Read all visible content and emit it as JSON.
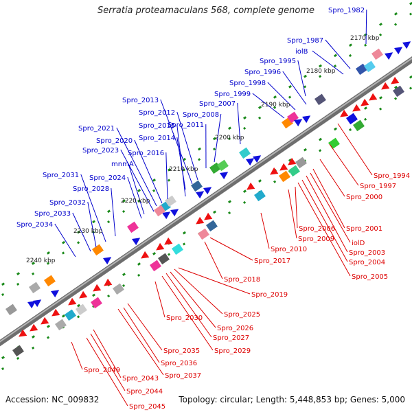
{
  "title": "Serratia proteamaculans 568, complete genome",
  "footer": {
    "accession": "Accession: NC_009832",
    "topology": "Topology: circular; Length: 5,448,853 bp; Genes: 5,000"
  },
  "colors": {
    "backbone": "#808080",
    "tick": "#1a8a1a",
    "plus_label": "#0000cc",
    "minus_label": "#dd0000",
    "plus_arrow": "#1010dd",
    "minus_arrow": "#ee1111"
  },
  "kbp_markers": [
    "2170 kbp",
    "2180 kbp",
    "2190 kbp",
    "2200 kbp",
    "2210 kbp",
    "2220 kbp",
    "2230 kbp",
    "2240 kbp"
  ],
  "plus_genes": [
    "Spro_1982",
    "Spro_1987",
    "iolB",
    "Spro_1995",
    "Spro_1996",
    "Spro_1998",
    "Spro_1999",
    "Spro_2007",
    "Spro_2008",
    "Spro_2011",
    "Spro_2012",
    "Spro_2013",
    "Spro_2014",
    "Spro_2015",
    "Spro_2016",
    "Spro_2020",
    "Spro_2021",
    "Spro_2023",
    "mnmA",
    "Spro_2024",
    "Spro_2028",
    "Spro_2031",
    "Spro_2032",
    "Spro_2033",
    "Spro_2034"
  ],
  "minus_genes": [
    "Spro_1994",
    "Spro_1997",
    "Spro_2000",
    "Spro_2001",
    "iolD",
    "Spro_2003",
    "Spro_2004",
    "Spro_2005",
    "Spro_2006",
    "Spro_2009",
    "Spro_2010",
    "Spro_2017",
    "Spro_2018",
    "Spro_2019",
    "Spro_2025",
    "Spro_2026",
    "Spro_2027",
    "Spro_2029",
    "Spro_2030",
    "Spro_2035",
    "Spro_2036",
    "Spro_2037",
    "Spro_2043",
    "Spro_2044",
    "Spro_2045",
    "Spro_2049"
  ]
}
